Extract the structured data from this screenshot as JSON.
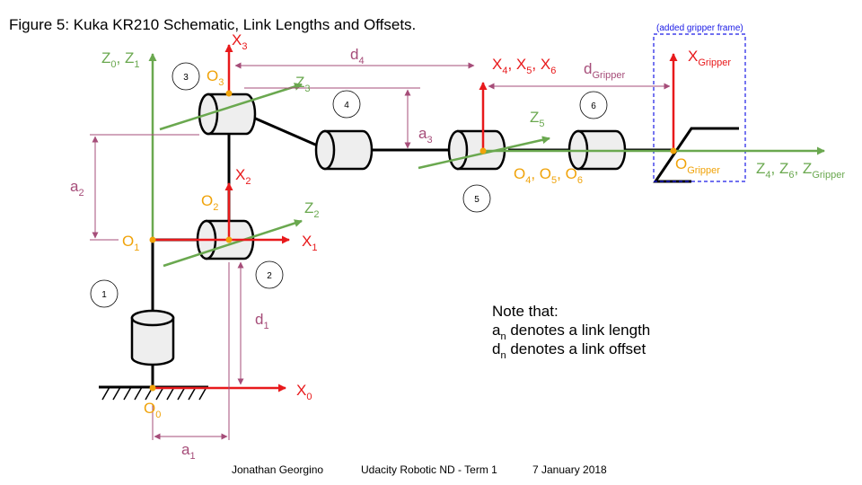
{
  "title": "Figure 5: Kuka KR210 Schematic, Link Lengths and Offsets.",
  "gripper_frame_note": "(added gripper frame)",
  "note": {
    "heading": "Note that:",
    "line1_main": "a",
    "line1_sub": "n",
    "line1_rest": " denotes a link length",
    "line2_main": "d",
    "line2_sub": "n",
    "line2_rest": " denotes a link offset"
  },
  "footer": {
    "author": "Jonathan Georgino",
    "course": "Udacity Robotic ND - Term 1",
    "date": "7 January 2018"
  },
  "joint_numbers": [
    "1",
    "2",
    "3",
    "4",
    "5",
    "6"
  ],
  "labels": {
    "Z0Z1": {
      "z0_main": "Z",
      "z0_sub": "0",
      "sep": ", ",
      "z1_main": "Z",
      "z1_sub": "1"
    },
    "X3": {
      "main": "X",
      "sub": "3"
    },
    "O3": {
      "main": "O",
      "sub": "3"
    },
    "Z3": {
      "main": "Z",
      "sub": "3"
    },
    "d4": {
      "main": "d",
      "sub": "4"
    },
    "X456": {
      "a": "X",
      "a_sub": "4",
      "b": ", X",
      "b_sub": "5",
      "c": ", X",
      "c_sub": "6"
    },
    "dGripper": {
      "main": "d",
      "sub": "Gripper"
    },
    "XGripper": {
      "main": "X",
      "sub": "Gripper"
    },
    "a3": {
      "main": "a",
      "sub": "3"
    },
    "Z5": {
      "main": "Z",
      "sub": "5"
    },
    "a2": {
      "main": "a",
      "sub": "2"
    },
    "X2": {
      "main": "X",
      "sub": "2"
    },
    "O2": {
      "main": "O",
      "sub": "2"
    },
    "Z2": {
      "main": "Z",
      "sub": "2"
    },
    "O1": {
      "main": "O",
      "sub": "1"
    },
    "X1": {
      "main": "X",
      "sub": "1"
    },
    "O456": {
      "a": "O",
      "a_sub": "4",
      "b": ", O",
      "b_sub": "5",
      "c": ", O",
      "c_sub": "6"
    },
    "OGripper": {
      "main": "O",
      "sub": "Gripper"
    },
    "Z46G": {
      "a": "Z",
      "a_sub": "4",
      "b": ", Z",
      "b_sub": "6",
      "c": ", Z",
      "c_sub": "Gripper"
    },
    "d1": {
      "main": "d",
      "sub": "1"
    },
    "X0": {
      "main": "X",
      "sub": "0"
    },
    "O0": {
      "main": "O",
      "sub": "0"
    },
    "a1": {
      "main": "a",
      "sub": "1"
    }
  },
  "colors": {
    "x_axis": "#e8191b",
    "z_axis": "#6aa84f",
    "origin": "#f0a30a",
    "dimension": "#a64d79",
    "link": "#000000",
    "cylinder_fill": "#eeeeee",
    "gripper_frame": "#1a1ae6"
  }
}
